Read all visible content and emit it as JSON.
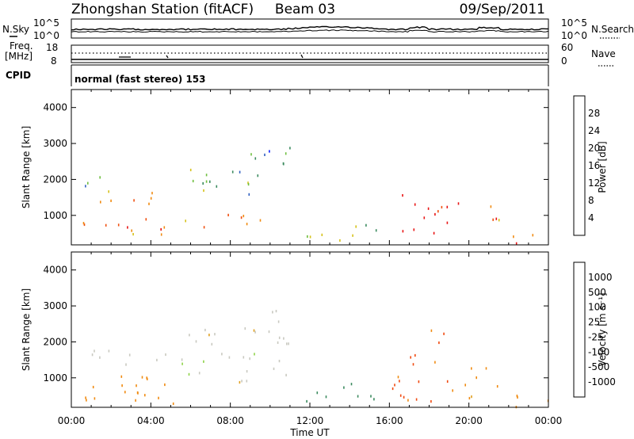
{
  "header": {
    "station": "Zhongshan Station (fitACF)",
    "beam": "Beam 03",
    "date": "09/Sep/2011"
  },
  "noise_panel": {
    "left_label": "N.Sky",
    "right_label": "N.Search",
    "left_ticks": [
      "10^5",
      "10^0"
    ],
    "right_ticks": [
      "10^5",
      "10^0"
    ]
  },
  "freq_panel": {
    "left_label_1": "Freq.",
    "left_label_2": "[MHz]",
    "left_ticks": [
      "18",
      "8"
    ],
    "right_label": "Nave",
    "right_ticks": [
      "60",
      "0"
    ]
  },
  "cpid": {
    "label": "CPID",
    "text": "normal (fast stereo) 153"
  },
  "x_axis": {
    "label": "Time UT",
    "ticks": [
      "00:00",
      "04:00",
      "08:00",
      "12:00",
      "16:00",
      "20:00",
      "00:00"
    ]
  },
  "colors": {
    "power_scale": [
      "#0a1eff",
      "#2f5fc0",
      "#3a8a5e",
      "#6fbf3f",
      "#d6c21a",
      "#f08a10",
      "#f05010",
      "#e81414"
    ],
    "velocity_scale": [
      "#e81414",
      "#f04a10",
      "#f08a10",
      "#e0a020",
      "#c9c9c0",
      "#8fd34a",
      "#3a8a5e",
      "#2f5fc0",
      "#0a1eff"
    ]
  },
  "chart_data": [
    {
      "type": "heatmap",
      "panel": "power",
      "ylabel": "Slant Range [km]",
      "xlabel": "Time UT",
      "xlim": [
        0,
        24
      ],
      "ylim": [
        180,
        4500
      ],
      "y_ticks": [
        "1000",
        "2000",
        "3000",
        "4000"
      ],
      "colorbar": {
        "label": "Power [dB]",
        "ticks": [
          "4",
          "8",
          "12",
          "16",
          "20",
          "24",
          "28"
        ],
        "range": [
          0,
          32
        ]
      },
      "features": [
        {
          "t": [
            0.5,
            4.5
          ],
          "r": [
            1300,
            1800
          ],
          "level": 0.55
        },
        {
          "t": [
            0.3,
            2.5
          ],
          "r": [
            1800,
            2100
          ],
          "level": 0.3
        },
        {
          "t": [
            0.5,
            6.5
          ],
          "r": [
            500,
            1000
          ],
          "level": 0.75
        },
        {
          "t": [
            4.5,
            9.5
          ],
          "r": [
            700,
            1100
          ],
          "level": 0.7
        },
        {
          "t": [
            5.5,
            10.5
          ],
          "r": [
            1500,
            2400
          ],
          "level": 0.35
        },
        {
          "t": [
            7.5,
            11.0
          ],
          "r": [
            2200,
            3100
          ],
          "level": 0.25
        },
        {
          "t": [
            11.5,
            15.5
          ],
          "r": [
            300,
            900
          ],
          "level": 0.45
        },
        {
          "t": [
            16.5,
            19.5
          ],
          "r": [
            400,
            1600
          ],
          "level": 0.95
        },
        {
          "t": [
            19.5,
            21.5
          ],
          "r": [
            500,
            1500
          ],
          "level": 0.8
        },
        {
          "t": [
            22.0,
            24.0
          ],
          "r": [
            200,
            700
          ],
          "level": 0.85
        }
      ]
    },
    {
      "type": "heatmap",
      "panel": "velocity",
      "ylabel": "Slant Range [km]",
      "xlabel": "Time UT",
      "xlim": [
        0,
        24
      ],
      "ylim": [
        180,
        4500
      ],
      "y_ticks": [
        "1000",
        "2000",
        "3000",
        "4000"
      ],
      "colorbar": {
        "label": "Velocity [m s⁻¹]",
        "ticks": [
          "1000",
          "500",
          "100",
          "25",
          "-25",
          "-100",
          "-500",
          "-1000"
        ]
      },
      "features": [
        {
          "t": [
            0.3,
            6.5
          ],
          "r": [
            300,
            1100
          ],
          "value": -300
        },
        {
          "t": [
            1.0,
            5.0
          ],
          "r": [
            1300,
            1800
          ],
          "value": 0
        },
        {
          "t": [
            5.5,
            11.0
          ],
          "r": [
            900,
            2600
          ],
          "value": 0
        },
        {
          "t": [
            10.0,
            11.0
          ],
          "r": [
            2600,
            3100
          ],
          "value": 20
        },
        {
          "t": [
            11.5,
            15.5
          ],
          "r": [
            300,
            900
          ],
          "value": 300
        },
        {
          "t": [
            15.5,
            16.5
          ],
          "r": [
            300,
            1200
          ],
          "value": -600
        },
        {
          "t": [
            16.5,
            19.5
          ],
          "r": [
            300,
            2600
          ],
          "value": -600
        },
        {
          "t": [
            19.5,
            21.5
          ],
          "r": [
            400,
            1400
          ],
          "value": -150
        },
        {
          "t": [
            22.0,
            24.0
          ],
          "r": [
            200,
            700
          ],
          "value": -250
        }
      ]
    }
  ]
}
